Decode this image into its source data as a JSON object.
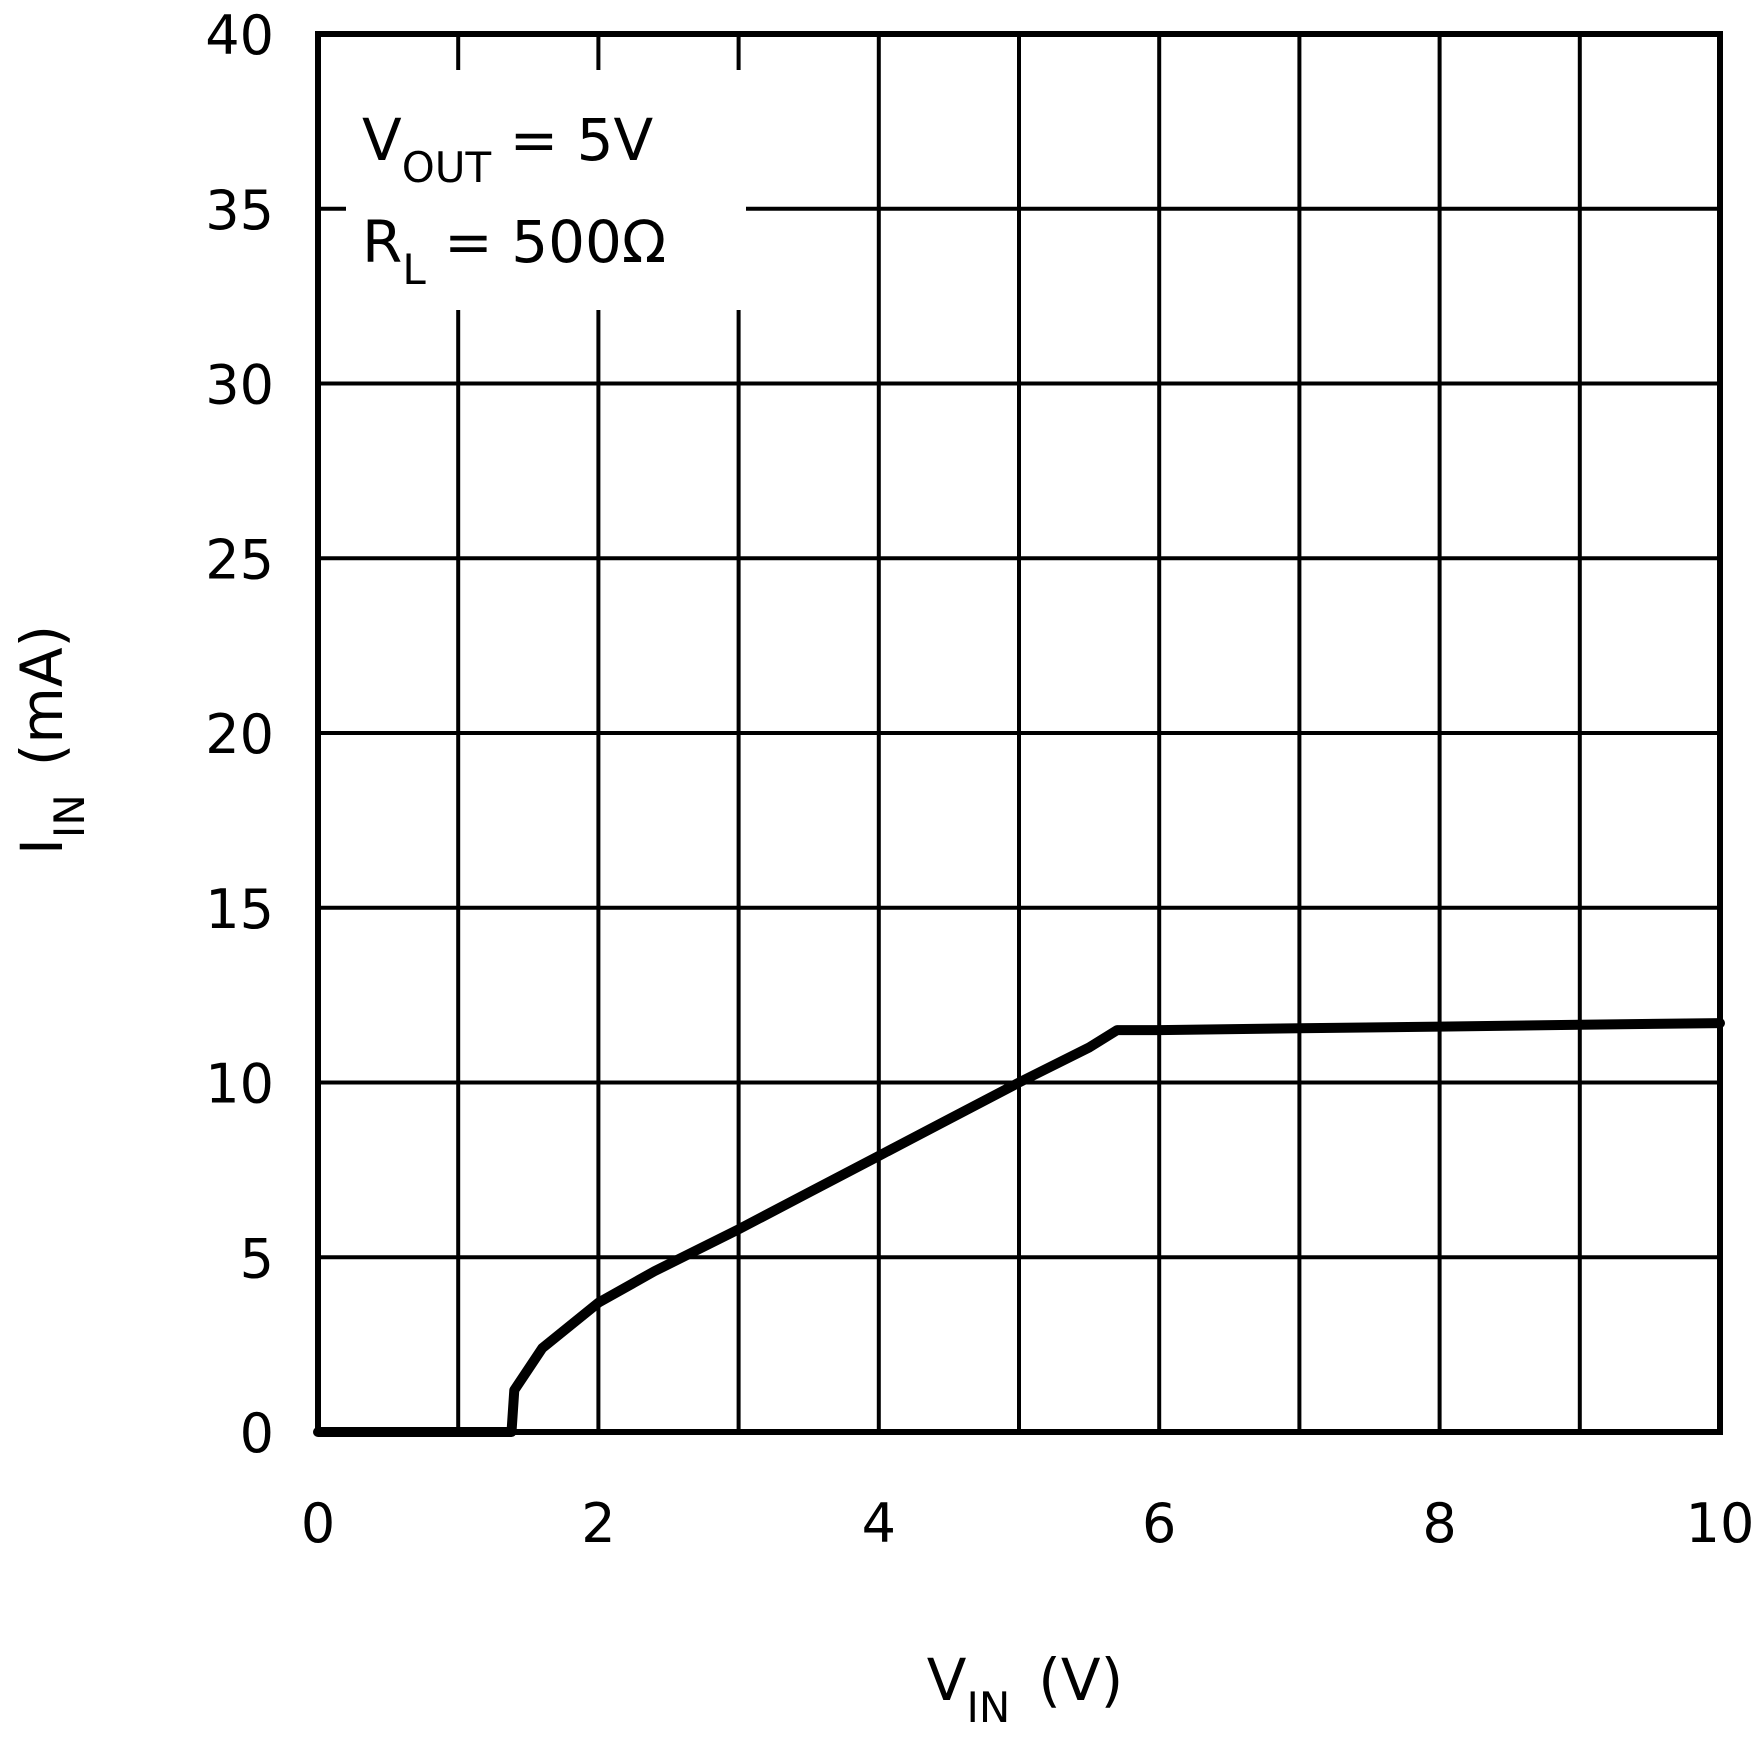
{
  "chart_data": {
    "type": "line",
    "x_axis": {
      "label_main": "V",
      "label_sub": "IN",
      "label_unit": "(V)",
      "range": [
        0,
        10
      ],
      "ticks": [
        0,
        2,
        4,
        6,
        8,
        10
      ],
      "tick_labels": [
        "0",
        "2",
        "4",
        "6",
        "8",
        "10"
      ]
    },
    "y_axis": {
      "label_main": "I",
      "label_sub": "IN",
      "label_unit": "(mA)",
      "range": [
        0,
        40
      ],
      "ticks": [
        0,
        5,
        10,
        15,
        20,
        25,
        30,
        35,
        40
      ],
      "tick_labels": [
        "0",
        "5",
        "10",
        "15",
        "20",
        "25",
        "30",
        "35",
        "40"
      ]
    },
    "grid": true,
    "annotations": [
      {
        "main": "V",
        "sub": "OUT",
        "rest": " = 5V"
      },
      {
        "main": "R",
        "sub": "L",
        "rest": " = 500Ω"
      }
    ],
    "series": [
      {
        "color": "#000000",
        "x": [
          0,
          0.5,
          1.0,
          1.3,
          1.38,
          1.4,
          1.45,
          1.6,
          2.0,
          2.4,
          3.0,
          3.5,
          4.0,
          4.5,
          5.0,
          5.5,
          5.7,
          6.0,
          7.0,
          8.0,
          9.0,
          10.0
        ],
        "y": [
          0,
          0,
          0,
          0,
          0,
          1.2,
          1.5,
          2.4,
          3.7,
          4.6,
          5.8,
          6.85,
          7.9,
          8.95,
          10.0,
          11.0,
          11.5,
          11.5,
          11.55,
          11.6,
          11.65,
          11.7
        ]
      }
    ]
  }
}
